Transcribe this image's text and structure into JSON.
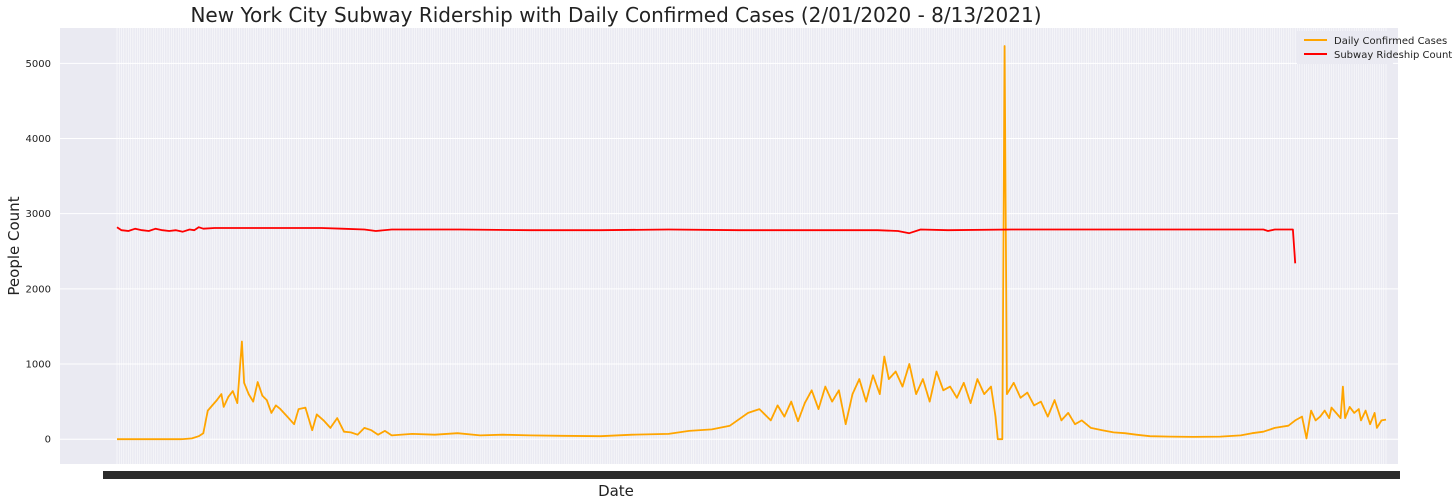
{
  "chart_data": {
    "type": "line",
    "title": "New York City Subway Ridership with Daily Confirmed Cases (2/01/2020 - 8/13/2021)",
    "xlabel": "Date",
    "ylabel": "People Count",
    "ylim": [
      -330,
      5470
    ],
    "yticks": [
      0,
      1000,
      2000,
      3000,
      4000,
      5000
    ],
    "x_range": [
      "2020-02-01",
      "2021-08-13"
    ],
    "x_tick_labels_legible": false,
    "grid": true,
    "legend_position": "top-right",
    "background": "#eaeaf2",
    "series": [
      {
        "name": "Daily Confirmed Cases",
        "color": "#ffa500",
        "points": [
          [
            "2020-02-01",
            0
          ],
          [
            "2020-02-29",
            0
          ],
          [
            "2020-03-01",
            1
          ],
          [
            "2020-03-05",
            10
          ],
          [
            "2020-03-08",
            40
          ],
          [
            "2020-03-10",
            80
          ],
          [
            "2020-03-12",
            380
          ],
          [
            "2020-03-14",
            450
          ],
          [
            "2020-03-16",
            520
          ],
          [
            "2020-03-18",
            600
          ],
          [
            "2020-03-19",
            430
          ],
          [
            "2020-03-21",
            560
          ],
          [
            "2020-03-23",
            640
          ],
          [
            "2020-03-25",
            480
          ],
          [
            "2020-03-27",
            1300
          ],
          [
            "2020-03-28",
            750
          ],
          [
            "2020-03-30",
            600
          ],
          [
            "2020-04-01",
            500
          ],
          [
            "2020-04-03",
            760
          ],
          [
            "2020-04-05",
            580
          ],
          [
            "2020-04-07",
            520
          ],
          [
            "2020-04-09",
            350
          ],
          [
            "2020-04-11",
            450
          ],
          [
            "2020-04-13",
            400
          ],
          [
            "2020-04-16",
            300
          ],
          [
            "2020-04-19",
            200
          ],
          [
            "2020-04-21",
            400
          ],
          [
            "2020-04-24",
            420
          ],
          [
            "2020-04-27",
            120
          ],
          [
            "2020-04-29",
            330
          ],
          [
            "2020-05-02",
            250
          ],
          [
            "2020-05-05",
            150
          ],
          [
            "2020-05-08",
            280
          ],
          [
            "2020-05-11",
            100
          ],
          [
            "2020-05-14",
            90
          ],
          [
            "2020-05-17",
            60
          ],
          [
            "2020-05-20",
            150
          ],
          [
            "2020-05-23",
            120
          ],
          [
            "2020-05-26",
            60
          ],
          [
            "2020-05-29",
            110
          ],
          [
            "2020-06-01",
            50
          ],
          [
            "2020-06-10",
            70
          ],
          [
            "2020-06-20",
            60
          ],
          [
            "2020-06-30",
            80
          ],
          [
            "2020-07-10",
            50
          ],
          [
            "2020-07-20",
            60
          ],
          [
            "2020-08-01",
            50
          ],
          [
            "2020-08-15",
            45
          ],
          [
            "2020-09-01",
            40
          ],
          [
            "2020-09-15",
            60
          ],
          [
            "2020-10-01",
            70
          ],
          [
            "2020-10-10",
            110
          ],
          [
            "2020-10-20",
            130
          ],
          [
            "2020-10-28",
            180
          ],
          [
            "2020-11-05",
            350
          ],
          [
            "2020-11-10",
            400
          ],
          [
            "2020-11-15",
            250
          ],
          [
            "2020-11-18",
            450
          ],
          [
            "2020-11-21",
            300
          ],
          [
            "2020-11-24",
            500
          ],
          [
            "2020-11-27",
            240
          ],
          [
            "2020-11-30",
            480
          ],
          [
            "2020-12-03",
            650
          ],
          [
            "2020-12-06",
            400
          ],
          [
            "2020-12-09",
            700
          ],
          [
            "2020-12-12",
            500
          ],
          [
            "2020-12-15",
            650
          ],
          [
            "2020-12-18",
            200
          ],
          [
            "2020-12-21",
            600
          ],
          [
            "2020-12-24",
            800
          ],
          [
            "2020-12-27",
            500
          ],
          [
            "2020-12-30",
            850
          ],
          [
            "2021-01-02",
            600
          ],
          [
            "2021-01-04",
            1100
          ],
          [
            "2021-01-06",
            800
          ],
          [
            "2021-01-09",
            900
          ],
          [
            "2021-01-12",
            700
          ],
          [
            "2021-01-15",
            1000
          ],
          [
            "2021-01-18",
            600
          ],
          [
            "2021-01-21",
            800
          ],
          [
            "2021-01-24",
            500
          ],
          [
            "2021-01-27",
            900
          ],
          [
            "2021-01-30",
            650
          ],
          [
            "2021-02-02",
            700
          ],
          [
            "2021-02-05",
            550
          ],
          [
            "2021-02-08",
            750
          ],
          [
            "2021-02-11",
            480
          ],
          [
            "2021-02-14",
            800
          ],
          [
            "2021-02-17",
            600
          ],
          [
            "2021-02-20",
            700
          ],
          [
            "2021-02-22",
            300
          ],
          [
            "2021-02-23",
            0
          ],
          [
            "2021-02-25",
            0
          ],
          [
            "2021-02-26",
            5230
          ],
          [
            "2021-02-27",
            600
          ],
          [
            "2021-03-02",
            750
          ],
          [
            "2021-03-05",
            550
          ],
          [
            "2021-03-08",
            620
          ],
          [
            "2021-03-11",
            450
          ],
          [
            "2021-03-14",
            500
          ],
          [
            "2021-03-17",
            300
          ],
          [
            "2021-03-20",
            520
          ],
          [
            "2021-03-23",
            250
          ],
          [
            "2021-03-26",
            350
          ],
          [
            "2021-03-29",
            200
          ],
          [
            "2021-04-01",
            250
          ],
          [
            "2021-04-05",
            150
          ],
          [
            "2021-04-10",
            120
          ],
          [
            "2021-04-15",
            90
          ],
          [
            "2021-04-20",
            80
          ],
          [
            "2021-04-25",
            60
          ],
          [
            "2021-05-01",
            40
          ],
          [
            "2021-05-10",
            35
          ],
          [
            "2021-05-20",
            30
          ],
          [
            "2021-06-01",
            35
          ],
          [
            "2021-06-10",
            50
          ],
          [
            "2021-06-15",
            80
          ],
          [
            "2021-06-20",
            100
          ],
          [
            "2021-06-25",
            150
          ],
          [
            "2021-07-01",
            180
          ],
          [
            "2021-07-04",
            250
          ],
          [
            "2021-07-07",
            300
          ],
          [
            "2021-07-09",
            10
          ],
          [
            "2021-07-11",
            380
          ],
          [
            "2021-07-13",
            250
          ],
          [
            "2021-07-15",
            300
          ],
          [
            "2021-07-17",
            380
          ],
          [
            "2021-07-19",
            280
          ],
          [
            "2021-07-20",
            420
          ],
          [
            "2021-07-22",
            350
          ],
          [
            "2021-07-24",
            280
          ],
          [
            "2021-07-25",
            700
          ],
          [
            "2021-07-26",
            280
          ],
          [
            "2021-07-28",
            430
          ],
          [
            "2021-07-30",
            350
          ],
          [
            "2021-08-01",
            400
          ],
          [
            "2021-08-02",
            250
          ],
          [
            "2021-08-04",
            380
          ],
          [
            "2021-08-06",
            200
          ],
          [
            "2021-08-08",
            350
          ],
          [
            "2021-08-09",
            150
          ],
          [
            "2021-08-11",
            250
          ],
          [
            "2021-08-13",
            260
          ]
        ]
      },
      {
        "name": "Subway Rideship Count",
        "color": "#ff0000",
        "points": [
          [
            "2020-02-01",
            2820
          ],
          [
            "2020-02-03",
            2780
          ],
          [
            "2020-02-06",
            2770
          ],
          [
            "2020-02-09",
            2800
          ],
          [
            "2020-02-12",
            2780
          ],
          [
            "2020-02-15",
            2770
          ],
          [
            "2020-02-18",
            2800
          ],
          [
            "2020-02-21",
            2780
          ],
          [
            "2020-02-24",
            2770
          ],
          [
            "2020-02-27",
            2780
          ],
          [
            "2020-03-01",
            2760
          ],
          [
            "2020-03-04",
            2790
          ],
          [
            "2020-03-06",
            2780
          ],
          [
            "2020-03-08",
            2820
          ],
          [
            "2020-03-10",
            2800
          ],
          [
            "2020-03-15",
            2810
          ],
          [
            "2020-04-01",
            2810
          ],
          [
            "2020-05-01",
            2810
          ],
          [
            "2020-05-10",
            2800
          ],
          [
            "2020-05-20",
            2790
          ],
          [
            "2020-05-25",
            2770
          ],
          [
            "2020-06-01",
            2790
          ],
          [
            "2020-07-01",
            2790
          ],
          [
            "2020-08-01",
            2780
          ],
          [
            "2020-09-01",
            2780
          ],
          [
            "2020-10-01",
            2790
          ],
          [
            "2020-11-01",
            2780
          ],
          [
            "2020-12-01",
            2780
          ],
          [
            "2021-01-01",
            2780
          ],
          [
            "2021-01-10",
            2770
          ],
          [
            "2021-01-15",
            2740
          ],
          [
            "2021-01-20",
            2790
          ],
          [
            "2021-02-01",
            2780
          ],
          [
            "2021-03-01",
            2790
          ],
          [
            "2021-04-01",
            2790
          ],
          [
            "2021-05-01",
            2790
          ],
          [
            "2021-06-01",
            2790
          ],
          [
            "2021-06-20",
            2790
          ],
          [
            "2021-06-22",
            2770
          ],
          [
            "2021-06-25",
            2790
          ],
          [
            "2021-07-01",
            2790
          ],
          [
            "2021-07-03",
            2790
          ],
          [
            "2021-07-04",
            2340
          ]
        ]
      }
    ]
  }
}
